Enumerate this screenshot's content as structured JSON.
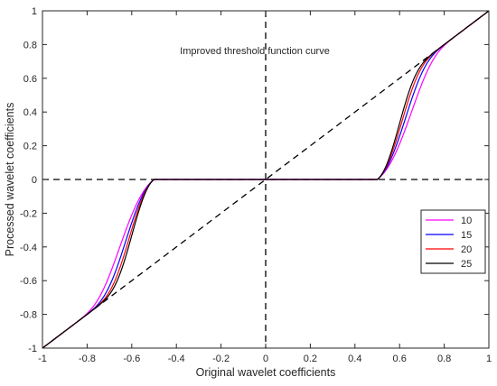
{
  "chart_data": {
    "type": "line",
    "title": "",
    "xlabel": "Original wavelet coefficients",
    "ylabel": "Processed wavelet coefficients",
    "xlim": [
      -1,
      1
    ],
    "ylim": [
      -1,
      1
    ],
    "xticks": [
      -1,
      -0.8,
      -0.6,
      -0.4,
      -0.2,
      0,
      0.2,
      0.4,
      0.6,
      0.8,
      1
    ],
    "yticks": [
      -1,
      -0.8,
      -0.6,
      -0.4,
      -0.2,
      0,
      0.2,
      0.4,
      0.6,
      0.8,
      1
    ],
    "grid": false,
    "annotation": "Improved threshold function curve",
    "threshold": 0.5,
    "legend_position": "right",
    "reference_lines": [
      "y = x",
      "x = 0",
      "y = 0"
    ],
    "series": [
      {
        "name": "10",
        "color": "#ff00ff"
      },
      {
        "name": "15",
        "color": "#0000ff"
      },
      {
        "name": "20",
        "color": "#ff0000"
      },
      {
        "name": "25",
        "color": "#000000"
      }
    ]
  }
}
